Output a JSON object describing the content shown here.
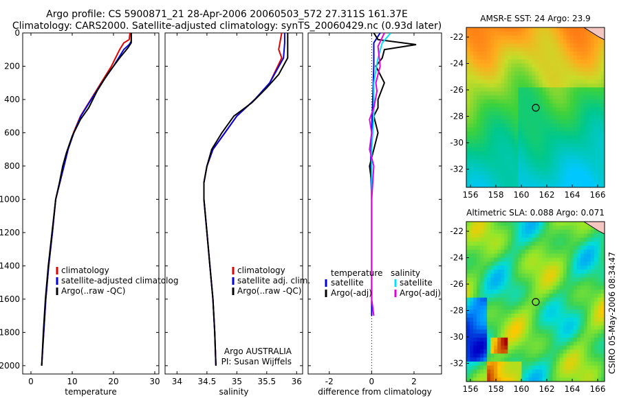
{
  "header": {
    "line1": "Argo profile: CS 5900871_21 28-Apr-2006 20060503_572 27.311S 161.37E",
    "line2": "Climatology: CARS2000. Satellite-adjusted climatology: synTS_20060429.nc (0.93d later)"
  },
  "colors": {
    "climatology": "#e00000",
    "satellite": "#0000e0",
    "argo": "#000000",
    "sat_diff_sal": "#00e0ff",
    "argo_diff_sal": "#e000e0"
  },
  "chart_data": [
    {
      "type": "line",
      "id": "temperature",
      "xlabel": "temperature",
      "ylim": [
        2050,
        0
      ],
      "xlim": [
        -2,
        31
      ],
      "xticks": [
        0,
        10,
        20,
        30
      ],
      "yticks": [
        0,
        200,
        400,
        600,
        800,
        1000,
        1200,
        1400,
        1600,
        1800,
        2000
      ],
      "legend": [
        "climatology",
        "satellite-adjusted climatolog",
        "Argo(..raw -QC)"
      ],
      "series": [
        {
          "name": "climatology",
          "color": "climatology",
          "points": [
            [
              24,
              0
            ],
            [
              23.8,
              40
            ],
            [
              22.5,
              60
            ],
            [
              21.5,
              100
            ],
            [
              19.5,
              200
            ],
            [
              17,
              300
            ],
            [
              14.5,
              400
            ],
            [
              12,
              500
            ],
            [
              10.3,
              600
            ],
            [
              9,
              700
            ],
            [
              8,
              800
            ],
            [
              7,
              900
            ],
            [
              6,
              1000
            ],
            [
              5.2,
              1200
            ],
            [
              4.3,
              1400
            ],
            [
              3.6,
              1600
            ],
            [
              3.1,
              1800
            ],
            [
              2.6,
              2000
            ]
          ]
        },
        {
          "name": "satellite",
          "color": "satellite",
          "points": [
            [
              24.3,
              0
            ],
            [
              24.3,
              50
            ],
            [
              23.8,
              70
            ],
            [
              22.5,
              100
            ],
            [
              20,
              200
            ],
            [
              17.2,
              300
            ],
            [
              14.6,
              400
            ],
            [
              12.1,
              500
            ],
            [
              10.4,
              600
            ],
            [
              9,
              700
            ],
            [
              8,
              800
            ],
            [
              7,
              900
            ],
            [
              6,
              1000
            ],
            [
              5.2,
              1200
            ],
            [
              4.3,
              1400
            ],
            [
              3.6,
              1600
            ],
            [
              3.1,
              1800
            ],
            [
              2.6,
              2000
            ]
          ]
        },
        {
          "name": "Argo",
          "color": "argo",
          "points": [
            [
              24.3,
              0
            ],
            [
              24.3,
              60
            ],
            [
              23.5,
              90
            ],
            [
              21.5,
              150
            ],
            [
              18.5,
              250
            ],
            [
              16,
              350
            ],
            [
              14,
              450
            ],
            [
              12,
              520
            ],
            [
              10,
              620
            ],
            [
              8.6,
              720
            ],
            [
              7.7,
              800
            ],
            [
              6.9,
              900
            ],
            [
              6,
              1000
            ],
            [
              5.1,
              1200
            ],
            [
              4.2,
              1400
            ],
            [
              3.5,
              1600
            ],
            [
              3,
              1800
            ],
            [
              2.6,
              2000
            ]
          ]
        }
      ]
    },
    {
      "type": "line",
      "id": "salinity",
      "xlabel": "salinity",
      "ylim": [
        2050,
        0
      ],
      "xlim": [
        33.8,
        36.1
      ],
      "xticks": [
        34,
        34.5,
        35,
        35.5,
        36
      ],
      "xticklabels": [
        "34",
        "34.5",
        "35",
        "35.5",
        "36"
      ],
      "legend": [
        "climatology",
        "satellite adj. clim.",
        "Argo(..raw -QC)"
      ],
      "note1": "Argo AUSTRALIA",
      "note2": "PI: Susan Wijffels",
      "series": [
        {
          "name": "climatology",
          "color": "climatology",
          "points": [
            [
              35.75,
              0
            ],
            [
              35.7,
              100
            ],
            [
              35.75,
              150
            ],
            [
              35.55,
              300
            ],
            [
              35.3,
              400
            ],
            [
              35,
              500
            ],
            [
              34.8,
              600
            ],
            [
              34.6,
              700
            ],
            [
              34.5,
              800
            ],
            [
              34.45,
              900
            ],
            [
              34.45,
              1000
            ],
            [
              34.5,
              1200
            ],
            [
              34.55,
              1400
            ],
            [
              34.6,
              1600
            ],
            [
              34.63,
              1800
            ],
            [
              34.65,
              2000
            ]
          ]
        },
        {
          "name": "satellite",
          "color": "satellite",
          "points": [
            [
              35.8,
              0
            ],
            [
              35.8,
              60
            ],
            [
              35.78,
              150
            ],
            [
              35.55,
              300
            ],
            [
              35.3,
              400
            ],
            [
              35,
              500
            ],
            [
              34.8,
              600
            ],
            [
              34.6,
              700
            ],
            [
              34.5,
              800
            ],
            [
              34.45,
              900
            ],
            [
              34.45,
              1000
            ],
            [
              34.5,
              1200
            ],
            [
              34.55,
              1400
            ],
            [
              34.6,
              1600
            ],
            [
              34.63,
              1800
            ],
            [
              34.65,
              2000
            ]
          ]
        },
        {
          "name": "Argo",
          "color": "argo",
          "points": [
            [
              35.85,
              0
            ],
            [
              35.85,
              150
            ],
            [
              35.7,
              250
            ],
            [
              35.5,
              330
            ],
            [
              35.25,
              420
            ],
            [
              34.95,
              500
            ],
            [
              34.75,
              600
            ],
            [
              34.58,
              700
            ],
            [
              34.5,
              800
            ],
            [
              34.45,
              900
            ],
            [
              34.45,
              1000
            ],
            [
              34.5,
              1200
            ],
            [
              34.55,
              1400
            ],
            [
              34.6,
              1600
            ],
            [
              34.63,
              1800
            ],
            [
              34.65,
              2000
            ]
          ]
        }
      ]
    },
    {
      "type": "line",
      "id": "difference",
      "xlabel": "difference from climatology",
      "ylim": [
        2050,
        0
      ],
      "xlim": [
        -3,
        3.3
      ],
      "xticks": [
        -2,
        0,
        2
      ],
      "legend_left_title": "temperature",
      "legend_left": [
        "satellite",
        "Argo(-adj)"
      ],
      "legend_right_title": "salinity",
      "legend_right": [
        "satellite",
        "Argo(-adj)"
      ],
      "series": [
        {
          "name": "temp satellite",
          "color": "satellite",
          "points": [
            [
              0.4,
              0
            ],
            [
              0.1,
              60
            ],
            [
              0.1,
              200
            ],
            [
              0,
              600
            ],
            [
              -0.05,
              800
            ],
            [
              0,
              1000
            ],
            [
              0,
              1600
            ],
            [
              0,
              1700
            ]
          ]
        },
        {
          "name": "temp Argo",
          "color": "argo",
          "points": [
            [
              0.1,
              0
            ],
            [
              0.3,
              40
            ],
            [
              2.1,
              70
            ],
            [
              0.6,
              100
            ],
            [
              0.5,
              150
            ],
            [
              0.2,
              200
            ],
            [
              0.6,
              300
            ],
            [
              0.3,
              400
            ],
            [
              0.3,
              450
            ],
            [
              0.1,
              500
            ],
            [
              0.3,
              600
            ],
            [
              0.1,
              700
            ],
            [
              -0.1,
              800
            ],
            [
              0,
              900
            ],
            [
              0,
              1000
            ]
          ]
        },
        {
          "name": "sal satellite",
          "color": "sat_diff_sal",
          "points": [
            [
              0.9,
              0
            ],
            [
              0.5,
              60
            ],
            [
              0.3,
              150
            ],
            [
              0.1,
              300
            ],
            [
              0.1,
              500
            ],
            [
              0,
              700
            ],
            [
              0,
              1000
            ],
            [
              0,
              1400
            ],
            [
              0,
              1500
            ]
          ]
        },
        {
          "name": "sal Argo",
          "color": "argo_diff_sal",
          "points": [
            [
              0.6,
              0
            ],
            [
              0.3,
              80
            ],
            [
              0.4,
              200
            ],
            [
              0.2,
              300
            ],
            [
              0.25,
              350
            ],
            [
              0.1,
              450
            ],
            [
              -0.1,
              520
            ],
            [
              0,
              600
            ],
            [
              -0.1,
              700
            ],
            [
              0.1,
              800
            ],
            [
              0,
              1000
            ],
            [
              0,
              1400
            ],
            [
              0,
              1600
            ],
            [
              0.1,
              1700
            ]
          ]
        }
      ]
    }
  ],
  "maps": [
    {
      "id": "sst",
      "title": "AMSR-E SST: 24 Argo: 23.9",
      "xticks": [
        "156",
        "158",
        "160",
        "162",
        "164",
        "166"
      ],
      "yticks": [
        "-22",
        "-24",
        "-26",
        "-28",
        "-30",
        "-32"
      ],
      "palette": "sst"
    },
    {
      "id": "sla",
      "title": "Altimetric SLA: 0.088 Argo: 0.071",
      "xticks": [
        "156",
        "158",
        "160",
        "162",
        "164",
        "166"
      ],
      "yticks": [
        "-22",
        "-24",
        "-26",
        "-28",
        "-30",
        "-32"
      ],
      "palette": "sla"
    }
  ],
  "footer": {
    "stamp": "CSIRO 05-May-2006 08:34:47"
  }
}
